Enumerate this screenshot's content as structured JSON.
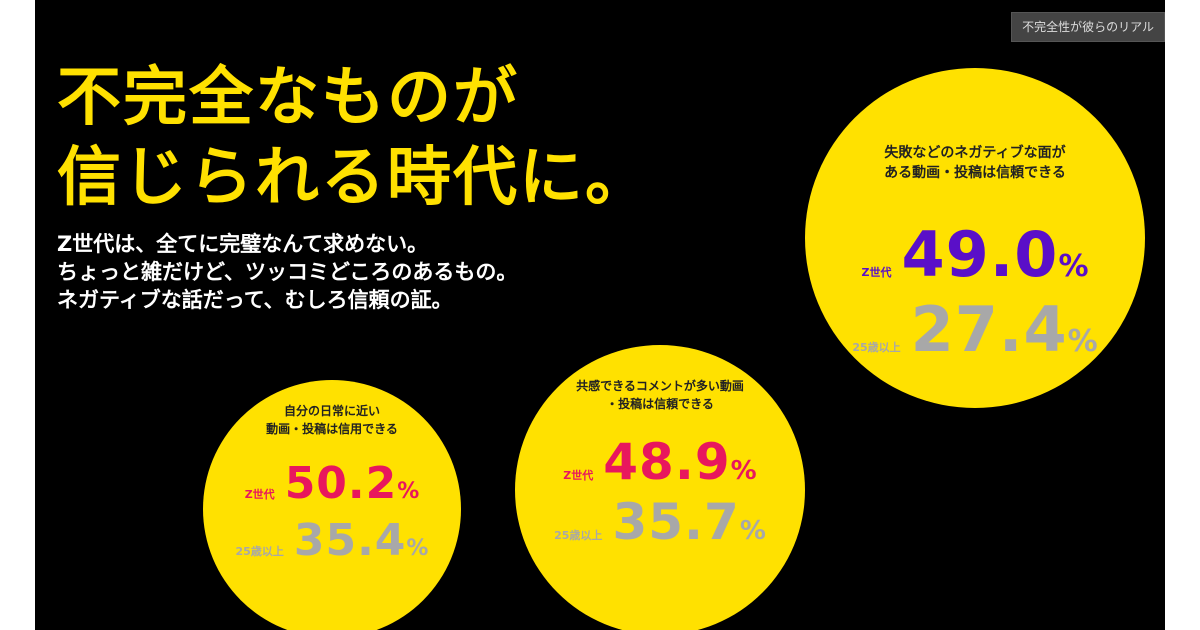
{
  "badge": "不完全性が彼らのリアル",
  "headline": [
    "不完全なものが",
    "信じられる時代に。"
  ],
  "subtitle": [
    "Z世代は、全てに完璧なんて求めない。",
    "ちょっと雑だけど、ツッコミどころのあるもの。",
    "ネガティブな話だって、むしろ信頼の証。"
  ],
  "colors": {
    "background": "#000000",
    "yellow": "#ffe100",
    "purple": "#5a0fc8",
    "pink": "#e8175d",
    "gray": "#a8a8a8"
  },
  "stats": [
    {
      "title": [
        "失敗などのネガティブな面が",
        "ある動画・投稿は信頼できる"
      ],
      "z_label": "Z世代",
      "z_value": "49.0",
      "older_label": "25歳以上",
      "older_value": "27.4",
      "unit": "%"
    },
    {
      "title": [
        "共感できるコメントが多い動画",
        "・投稿は信頼できる"
      ],
      "z_label": "Z世代",
      "z_value": "48.9",
      "older_label": "25歳以上",
      "older_value": "35.7",
      "unit": "%"
    },
    {
      "title": [
        "自分の日常に近い",
        "動画・投稿は信用できる"
      ],
      "z_label": "Z世代",
      "z_value": "50.2",
      "older_label": "25歳以上",
      "older_value": "35.4",
      "unit": "%"
    }
  ]
}
